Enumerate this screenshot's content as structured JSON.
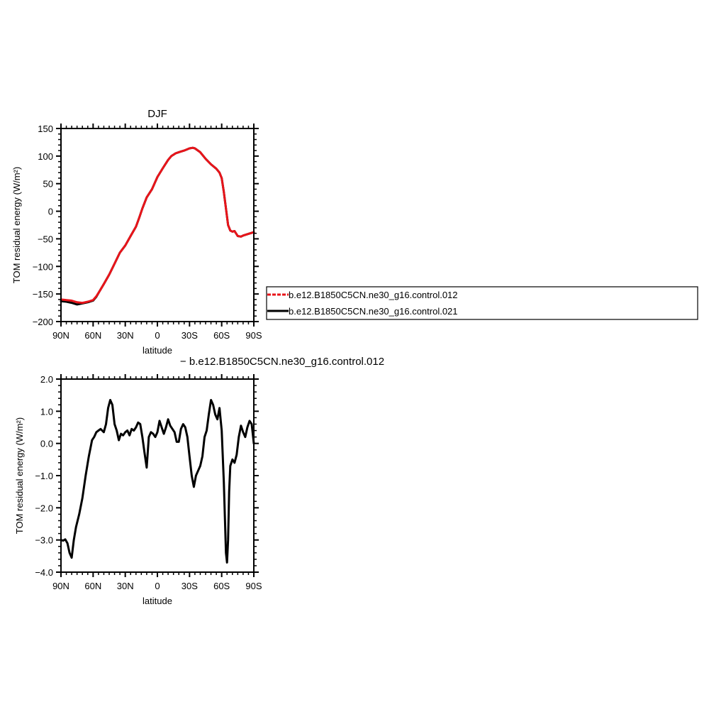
{
  "colors": {
    "series_012": "#e8141a",
    "series_021": "#000000",
    "difference": "#000000",
    "axes": "#000000",
    "background": "#ffffff"
  },
  "legend": {
    "placement": "right of top panel",
    "entries": [
      {
        "label": "b.e12.B1850C5CN.ne30_g16.control.012",
        "color": "#e8141a",
        "style": "dashed"
      },
      {
        "label": "b.e12.B1850C5CN.ne30_g16.control.021",
        "color": "#000000",
        "style": "solid"
      }
    ]
  },
  "chart_data": [
    {
      "type": "line",
      "title": "DJF",
      "xlabel": "latitude",
      "ylabel": "TOM residual energy (W/m²)",
      "xlim": [
        90,
        -90
      ],
      "ylim": [
        -200,
        150
      ],
      "x_ticks": [
        {
          "value": 90,
          "label": "90N"
        },
        {
          "value": 60,
          "label": "60N"
        },
        {
          "value": 30,
          "label": "30N"
        },
        {
          "value": 0,
          "label": "0"
        },
        {
          "value": -30,
          "label": "30S"
        },
        {
          "value": -60,
          "label": "60S"
        },
        {
          "value": -90,
          "label": "90S"
        }
      ],
      "y_ticks": [
        {
          "value": 150,
          "label": "150"
        },
        {
          "value": 100,
          "label": "100"
        },
        {
          "value": 50,
          "label": "50"
        },
        {
          "value": 0,
          "label": "0"
        },
        {
          "value": -50,
          "label": "−50"
        },
        {
          "value": -100,
          "label": "−100"
        },
        {
          "value": -150,
          "label": "−150"
        },
        {
          "value": -200,
          "label": "−200"
        }
      ],
      "grid": false,
      "series": [
        {
          "name": "b.e12.B1850C5CN.ne30_g16.control.021",
          "color": "#000000",
          "style": "solid",
          "x": [
            90,
            85,
            80,
            75,
            70,
            65,
            60,
            57,
            54,
            50,
            45,
            40,
            35,
            30,
            25,
            20,
            17,
            14,
            10,
            5,
            0,
            -5,
            -10,
            -13,
            -17,
            -20,
            -25,
            -30,
            -33,
            -35,
            -40,
            -45,
            -50,
            -55,
            -58,
            -60,
            -62,
            -64,
            -66,
            -68,
            -70,
            -72,
            -75,
            -78,
            -80,
            -85,
            -90
          ],
          "y": [
            -163,
            -164,
            -166,
            -169,
            -167,
            -165,
            -162,
            -155,
            -145,
            -132,
            -115,
            -95,
            -75,
            -62,
            -45,
            -28,
            -12,
            5,
            25,
            40,
            62,
            78,
            93,
            100,
            105,
            107,
            110,
            114,
            115,
            114,
            107,
            95,
            85,
            77,
            70,
            60,
            35,
            5,
            -25,
            -35,
            -37,
            -36,
            -45,
            -46,
            -44,
            -41,
            -38
          ]
        },
        {
          "name": "b.e12.B1850C5CN.ne30_g16.control.012",
          "color": "#e8141a",
          "style": "dashed",
          "x": [
            90,
            85,
            80,
            75,
            70,
            65,
            60,
            57,
            54,
            50,
            45,
            40,
            35,
            30,
            25,
            20,
            17,
            14,
            10,
            5,
            0,
            -5,
            -10,
            -13,
            -17,
            -20,
            -25,
            -30,
            -33,
            -35,
            -40,
            -45,
            -50,
            -55,
            -58,
            -60,
            -62,
            -64,
            -66,
            -68,
            -70,
            -72,
            -75,
            -78,
            -80,
            -85,
            -90
          ],
          "y": [
            -160,
            -161,
            -162,
            -165,
            -166,
            -164,
            -161,
            -154,
            -145,
            -132,
            -115,
            -95,
            -75,
            -62,
            -45,
            -28,
            -12,
            5,
            25,
            40,
            62,
            78,
            93,
            100,
            105,
            107,
            110,
            114,
            115,
            114,
            107,
            95,
            85,
            77,
            70,
            60,
            35,
            5,
            -25,
            -35,
            -37,
            -36,
            -45,
            -46,
            -44,
            -41,
            -38
          ]
        }
      ]
    },
    {
      "type": "line",
      "title": "− b.e12.B1850C5CN.ne30_g16.control.012",
      "xlabel": "latitude",
      "ylabel": "TOM residual energy (W/m²)",
      "xlim": [
        90,
        -90
      ],
      "ylim": [
        -4.0,
        2.0
      ],
      "x_ticks": [
        {
          "value": 90,
          "label": "90N"
        },
        {
          "value": 60,
          "label": "60N"
        },
        {
          "value": 30,
          "label": "30N"
        },
        {
          "value": 0,
          "label": "0"
        },
        {
          "value": -30,
          "label": "30S"
        },
        {
          "value": -60,
          "label": "60S"
        },
        {
          "value": -90,
          "label": "90S"
        }
      ],
      "y_ticks": [
        {
          "value": 2.0,
          "label": "2.0"
        },
        {
          "value": 1.0,
          "label": "1.0"
        },
        {
          "value": 0.0,
          "label": "0.0"
        },
        {
          "value": -1.0,
          "label": "−1.0"
        },
        {
          "value": -2.0,
          "label": "−2.0"
        },
        {
          "value": -3.0,
          "label": "−3.0"
        },
        {
          "value": -4.0,
          "label": "−4.0"
        }
      ],
      "grid": false,
      "series": [
        {
          "color": "#000000",
          "style": "solid",
          "x": [
            90,
            88,
            86,
            84,
            82,
            80,
            78,
            76,
            73,
            70,
            67,
            64,
            61,
            59,
            57,
            55,
            53,
            50,
            48,
            46,
            44,
            42,
            40,
            38,
            36,
            34,
            32,
            30,
            28,
            26,
            24,
            22,
            20,
            18,
            16,
            14,
            12,
            10,
            8,
            6,
            4,
            2,
            0,
            -2,
            -4,
            -6,
            -8,
            -10,
            -12,
            -14,
            -16,
            -18,
            -20,
            -22,
            -24,
            -26,
            -28,
            -30,
            -32,
            -34,
            -36,
            -38,
            -40,
            -42,
            -44,
            -46,
            -48,
            -50,
            -52,
            -54,
            -56,
            -58,
            -60,
            -62,
            -64,
            -65,
            -66,
            -67,
            -68,
            -69,
            -70,
            -71,
            -72,
            -74,
            -76,
            -78,
            -80,
            -82,
            -84,
            -86,
            -88,
            -90
          ],
          "y": [
            -3.0,
            -3.02,
            -2.98,
            -3.1,
            -3.4,
            -3.55,
            -3.0,
            -2.6,
            -2.2,
            -1.7,
            -1.0,
            -0.4,
            0.1,
            0.2,
            0.35,
            0.4,
            0.45,
            0.35,
            0.6,
            1.1,
            1.35,
            1.2,
            0.6,
            0.4,
            0.1,
            0.3,
            0.25,
            0.35,
            0.4,
            0.25,
            0.45,
            0.4,
            0.5,
            0.65,
            0.6,
            0.2,
            -0.3,
            -0.75,
            0.2,
            0.35,
            0.3,
            0.2,
            0.35,
            0.7,
            0.5,
            0.3,
            0.5,
            0.75,
            0.55,
            0.45,
            0.35,
            0.05,
            0.05,
            0.45,
            0.6,
            0.5,
            0.2,
            -0.4,
            -1.0,
            -1.35,
            -1.0,
            -0.85,
            -0.7,
            -0.4,
            0.2,
            0.4,
            0.9,
            1.35,
            1.2,
            0.9,
            0.75,
            1.1,
            0.4,
            -1.2,
            -3.4,
            -3.7,
            -3.0,
            -1.5,
            -0.7,
            -0.6,
            -0.5,
            -0.55,
            -0.6,
            -0.35,
            0.2,
            0.55,
            0.35,
            0.2,
            0.5,
            0.7,
            0.6,
            0.0
          ]
        }
      ]
    }
  ]
}
